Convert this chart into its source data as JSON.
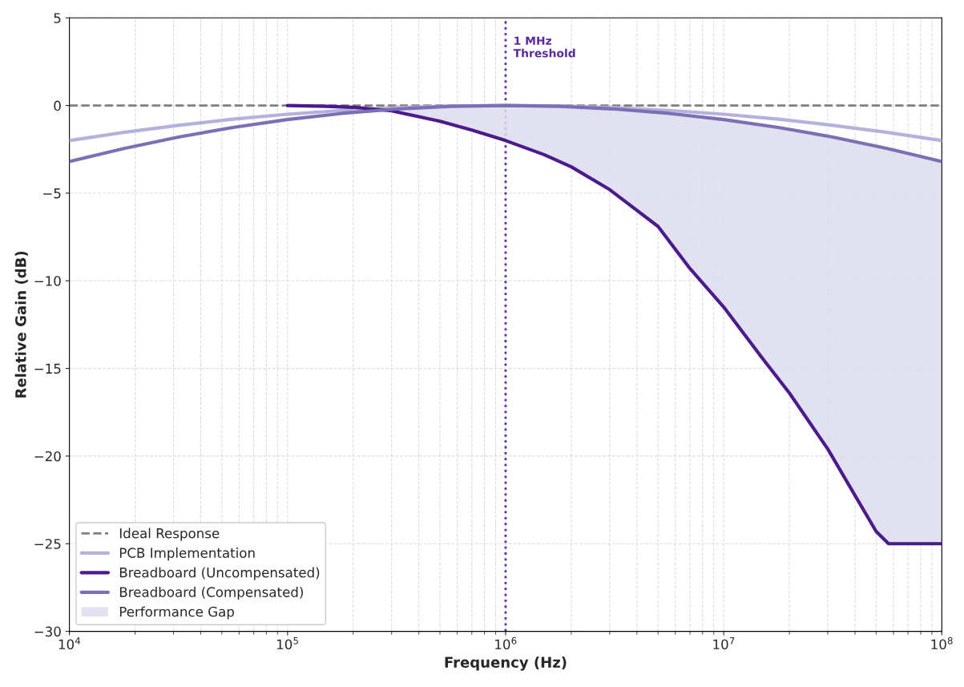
{
  "chart_data": {
    "type": "line",
    "xlabel": "Frequency (Hz)",
    "ylabel": "Relative Gain (dB)",
    "log": "x",
    "xlim": [
      10000,
      100000000
    ],
    "xticks": [
      {
        "value": 10000,
        "label": "10$^{4}$"
      },
      {
        "value": 100000,
        "label": "10$^{5}$"
      },
      {
        "value": 1000000,
        "label": "10$^{6}$"
      },
      {
        "value": 10000000,
        "label": "10$^{7}$"
      },
      {
        "value": 100000000,
        "label": "10$^{8}$"
      }
    ],
    "ylim": [
      -30,
      5
    ],
    "yticks": [
      -30,
      -25,
      -20,
      -15,
      -10,
      -5,
      0,
      5
    ],
    "grid": true,
    "legend": "bottom left",
    "annotations": [
      "Performance Gap"
    ],
    "ref_lines": [
      {
        "axis": "y",
        "value": 0,
        "label": "Ideal Response",
        "color": "#808080",
        "line_style": "dashed"
      },
      {
        "axis": "x",
        "value": 1000000,
        "label": "1 MHz\nThreshold",
        "color": "#5b2a9e",
        "line_style": "dotted"
      }
    ],
    "series": [
      {
        "name": "PCB Implementation",
        "color": "#b4b2dc",
        "x": [
          10000,
          17783,
          31623,
          56234,
          100000,
          177828,
          316228,
          562341,
          1000000,
          1778279,
          3162278,
          5623413,
          10000000,
          17782794,
          31622777,
          56234133,
          100000000
        ],
        "values": [
          -2,
          -1.53,
          -1.13,
          -0.78,
          -0.5,
          -0.28,
          -0.13,
          -0.03,
          0,
          -0.03,
          -0.13,
          -0.28,
          -0.5,
          -0.78,
          -1.13,
          -1.53,
          -2
        ]
      },
      {
        "name": "Breadboard (Uncompensated)",
        "color": "#4b1a8c",
        "x": [
          100000,
          150000,
          200000,
          300000,
          500000,
          700000,
          1000000,
          1500000,
          2000000,
          3000000,
          5000000,
          7000000,
          10000000,
          15000000,
          20000000,
          30000000,
          50000000,
          57000000,
          100000000
        ],
        "values": [
          0,
          -0.05,
          -0.1,
          -0.3,
          -0.9,
          -1.4,
          -2.0,
          -2.8,
          -3.5,
          -4.8,
          -6.9,
          -9.3,
          -11.5,
          -14.4,
          -16.4,
          -19.6,
          -24.3,
          -25,
          -25
        ],
        "lower": [
          0,
          -0.05,
          -0.1,
          -0.3,
          -0.9,
          -1.4,
          -2.0,
          -2.8,
          -3.5,
          -4.8,
          -6.9,
          -9.3,
          -11.5,
          -14.4,
          -16.4,
          -19.6,
          -24.3,
          -25,
          -25
        ],
        "upper": [
          0,
          -0.05,
          -0.1,
          -0.22,
          -0.07,
          -0.02,
          0,
          -0.03,
          -0.07,
          -0.18,
          -0.39,
          -0.58,
          -0.8,
          -1.11,
          -1.35,
          -1.84,
          -2.31,
          -2.48,
          -3.2
        ]
      },
      {
        "name": "Breadboard (Compensated)",
        "color": "#7a70b6",
        "x": [
          10000,
          17783,
          31623,
          56234,
          100000,
          177828,
          316228,
          562341,
          1000000,
          1778279,
          3162278,
          5623413,
          10000000,
          17782794,
          31622777,
          56234133,
          100000000
        ],
        "values": [
          -3.2,
          -2.45,
          -1.8,
          -1.25,
          -0.8,
          -0.45,
          -0.2,
          -0.05,
          0,
          -0.05,
          -0.2,
          -0.45,
          -0.8,
          -1.25,
          -1.8,
          -2.45,
          -3.2
        ]
      }
    ]
  }
}
